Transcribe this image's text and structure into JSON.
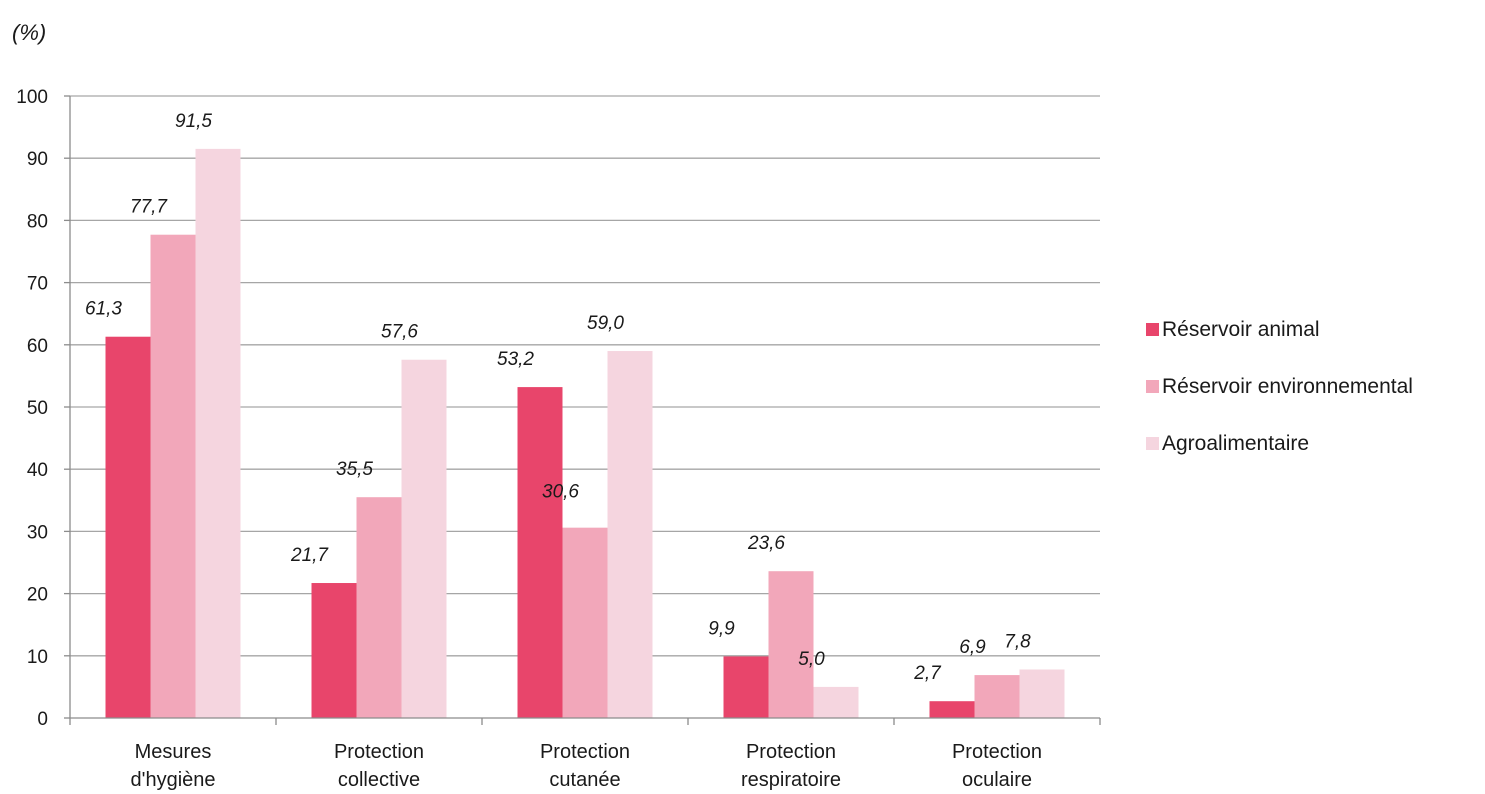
{
  "chart_data": {
    "type": "bar",
    "unit_label": "(%)",
    "categories": [
      [
        "Mesures",
        "d'hygiène"
      ],
      [
        "Protection",
        "collective"
      ],
      [
        "Protection",
        "cutanée"
      ],
      [
        "Protection",
        "respiratoire"
      ],
      [
        "Protection",
        "oculaire"
      ]
    ],
    "series": [
      {
        "name": "Réservoir animal",
        "color": "#e8456b",
        "values": [
          61.3,
          21.7,
          53.2,
          9.9,
          2.7
        ],
        "labels": [
          "61,3",
          "21,7",
          "53,2",
          "9,9",
          "2,7"
        ]
      },
      {
        "name": "Réservoir environnemental",
        "color": "#f2a7ba",
        "values": [
          77.7,
          35.5,
          30.6,
          23.6,
          6.9
        ],
        "labels": [
          "77,7",
          "35,5",
          "30,6",
          "23,6",
          "6,9"
        ]
      },
      {
        "name": "Agroalimentaire",
        "color": "#f5d5df",
        "values": [
          91.5,
          57.6,
          59.0,
          5.0,
          7.8
        ],
        "labels": [
          "91,5",
          "57,6",
          "59,0",
          "5,0",
          "7,8"
        ]
      }
    ],
    "y_ticks": [
      "0",
      "10",
      "20",
      "30",
      "40",
      "50",
      "60",
      "70",
      "80",
      "90",
      "100"
    ],
    "ylim": [
      0,
      100
    ],
    "grid": true,
    "legend_position": "right"
  }
}
